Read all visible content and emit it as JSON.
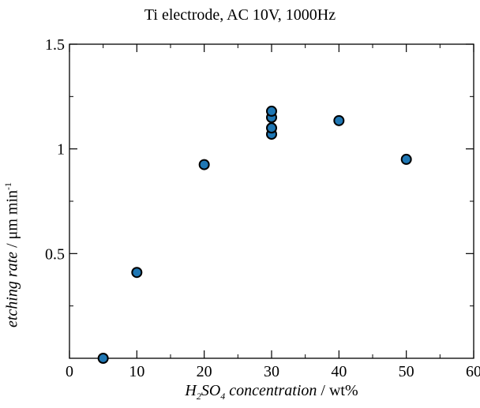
{
  "chart_data": {
    "type": "scatter",
    "title": "Ti electrode, AC 10V, 1000Hz",
    "xlabel": {
      "parts": [
        {
          "text": "H",
          "style": "italic"
        },
        {
          "text": "2",
          "style": "sub-italic"
        },
        {
          "text": "SO",
          "style": "italic"
        },
        {
          "text": "4",
          "style": "sub-italic"
        },
        {
          "text": " concentration",
          "style": "italic"
        },
        {
          "text": " / wt%",
          "style": "normal"
        }
      ]
    },
    "ylabel": {
      "parts": [
        {
          "text": "etching rate",
          "style": "italic"
        },
        {
          "text": " / μm min",
          "style": "normal"
        },
        {
          "text": "-1",
          "style": "sup"
        }
      ]
    },
    "xlim": [
      0,
      60
    ],
    "ylim": [
      0,
      1.5
    ],
    "xticks": [
      0,
      10,
      20,
      30,
      40,
      50,
      60
    ],
    "xtick_labels": [
      "0",
      "10",
      "20",
      "30",
      "40",
      "50",
      "60"
    ],
    "yticks": [
      0.5,
      1,
      1.5
    ],
    "ytick_labels": [
      "0.5",
      "1",
      "1.5"
    ],
    "grid": false,
    "points": [
      {
        "x": 5,
        "y": 0.0
      },
      {
        "x": 10,
        "y": 0.41
      },
      {
        "x": 20,
        "y": 0.925
      },
      {
        "x": 30,
        "y": 1.07
      },
      {
        "x": 30,
        "y": 1.1
      },
      {
        "x": 30,
        "y": 1.15
      },
      {
        "x": 30,
        "y": 1.18
      },
      {
        "x": 40,
        "y": 1.135
      },
      {
        "x": 50,
        "y": 0.95
      }
    ],
    "marker_color": "#1f77b4",
    "marker_edge_color": "#000000"
  }
}
